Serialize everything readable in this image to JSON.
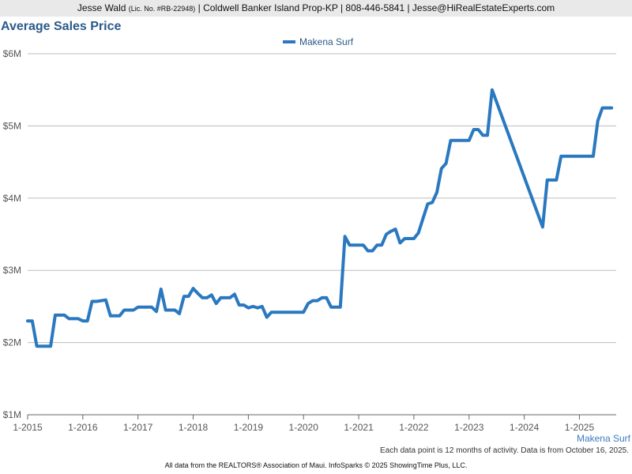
{
  "header": {
    "agent_name": "Jesse Wald",
    "license": "(Lic. No. #RB-22948)",
    "details": "| Coldwell Banker Island Prop-KP | 808-446-5841 | Jesse@HiRealEstateExperts.com"
  },
  "chart_data": {
    "type": "line",
    "title": "Average Sales Price",
    "legend_position": "top-center",
    "grid": true,
    "y_ticks": [
      "$6M",
      "$5M",
      "$4M",
      "$3M",
      "$2M",
      "$1M"
    ],
    "y_tick_values": [
      6,
      5,
      4,
      3,
      2,
      1
    ],
    "ylim": [
      1,
      6
    ],
    "y_unit": "millions USD",
    "x_ticks": [
      "1-2015",
      "1-2016",
      "1-2017",
      "1-2018",
      "1-2019",
      "1-2020",
      "1-2021",
      "1-2022",
      "1-2023",
      "1-2024",
      "1-2025"
    ],
    "x_tick_values": [
      "2015-01",
      "2016-01",
      "2017-01",
      "2018-01",
      "2019-01",
      "2020-01",
      "2021-01",
      "2022-01",
      "2023-01",
      "2024-01",
      "2025-01"
    ],
    "xlim": [
      "2015-01",
      "2025-09"
    ],
    "series": [
      {
        "name": "Makena Surf",
        "color": "#2a78bf",
        "points": [
          [
            "2015-01",
            2.3
          ],
          [
            "2015-02",
            2.3
          ],
          [
            "2015-03",
            1.95
          ],
          [
            "2015-04",
            1.95
          ],
          [
            "2015-05",
            1.95
          ],
          [
            "2015-06",
            1.95
          ],
          [
            "2015-07",
            2.38
          ],
          [
            "2015-08",
            2.38
          ],
          [
            "2015-09",
            2.38
          ],
          [
            "2015-10",
            2.33
          ],
          [
            "2015-11",
            2.33
          ],
          [
            "2015-12",
            2.33
          ],
          [
            "2016-01",
            2.3
          ],
          [
            "2016-02",
            2.3
          ],
          [
            "2016-03",
            2.57
          ],
          [
            "2016-04",
            2.57
          ],
          [
            "2016-05",
            2.58
          ],
          [
            "2016-06",
            2.59
          ],
          [
            "2016-07",
            2.37
          ],
          [
            "2016-08",
            2.37
          ],
          [
            "2016-09",
            2.37
          ],
          [
            "2016-10",
            2.45
          ],
          [
            "2016-11",
            2.45
          ],
          [
            "2016-12",
            2.45
          ],
          [
            "2017-01",
            2.49
          ],
          [
            "2017-02",
            2.49
          ],
          [
            "2017-03",
            2.49
          ],
          [
            "2017-04",
            2.49
          ],
          [
            "2017-05",
            2.43
          ],
          [
            "2017-06",
            2.74
          ],
          [
            "2017-07",
            2.45
          ],
          [
            "2017-08",
            2.45
          ],
          [
            "2017-09",
            2.45
          ],
          [
            "2017-10",
            2.4
          ],
          [
            "2017-11",
            2.64
          ],
          [
            "2017-12",
            2.64
          ],
          [
            "2018-01",
            2.75
          ],
          [
            "2018-02",
            2.68
          ],
          [
            "2018-03",
            2.62
          ],
          [
            "2018-04",
            2.62
          ],
          [
            "2018-05",
            2.66
          ],
          [
            "2018-06",
            2.54
          ],
          [
            "2018-07",
            2.62
          ],
          [
            "2018-08",
            2.62
          ],
          [
            "2018-09",
            2.62
          ],
          [
            "2018-10",
            2.67
          ],
          [
            "2018-11",
            2.52
          ],
          [
            "2018-12",
            2.52
          ],
          [
            "2019-01",
            2.48
          ],
          [
            "2019-02",
            2.5
          ],
          [
            "2019-03",
            2.48
          ],
          [
            "2019-04",
            2.5
          ],
          [
            "2019-05",
            2.35
          ],
          [
            "2019-06",
            2.42
          ],
          [
            "2019-07",
            2.42
          ],
          [
            "2019-08",
            2.42
          ],
          [
            "2019-09",
            2.42
          ],
          [
            "2019-10",
            2.42
          ],
          [
            "2019-11",
            2.42
          ],
          [
            "2019-12",
            2.42
          ],
          [
            "2020-01",
            2.42
          ],
          [
            "2020-02",
            2.54
          ],
          [
            "2020-03",
            2.58
          ],
          [
            "2020-04",
            2.58
          ],
          [
            "2020-05",
            2.62
          ],
          [
            "2020-06",
            2.62
          ],
          [
            "2020-07",
            2.49
          ],
          [
            "2020-08",
            2.49
          ],
          [
            "2020-09",
            2.49
          ],
          [
            "2020-10",
            3.47
          ],
          [
            "2020-11",
            3.35
          ],
          [
            "2020-12",
            3.35
          ],
          [
            "2021-01",
            3.35
          ],
          [
            "2021-02",
            3.35
          ],
          [
            "2021-03",
            3.27
          ],
          [
            "2021-04",
            3.27
          ],
          [
            "2021-05",
            3.35
          ],
          [
            "2021-06",
            3.35
          ],
          [
            "2021-07",
            3.5
          ],
          [
            "2021-08",
            3.54
          ],
          [
            "2021-09",
            3.57
          ],
          [
            "2021-10",
            3.38
          ],
          [
            "2021-11",
            3.44
          ],
          [
            "2021-12",
            3.44
          ],
          [
            "2022-01",
            3.44
          ],
          [
            "2022-02",
            3.52
          ],
          [
            "2022-03",
            3.72
          ],
          [
            "2022-04",
            3.92
          ],
          [
            "2022-05",
            3.94
          ],
          [
            "2022-06",
            4.08
          ],
          [
            "2022-07",
            4.41
          ],
          [
            "2022-08",
            4.48
          ],
          [
            "2022-09",
            4.8
          ],
          [
            "2022-10",
            4.8
          ],
          [
            "2022-11",
            4.8
          ],
          [
            "2022-12",
            4.8
          ],
          [
            "2023-01",
            4.8
          ],
          [
            "2023-02",
            4.95
          ],
          [
            "2023-03",
            4.95
          ],
          [
            "2023-04",
            4.87
          ],
          [
            "2023-05",
            4.87
          ],
          [
            "2023-06",
            5.5
          ],
          [
            "2024-05",
            3.6
          ],
          [
            "2024-06",
            4.25
          ],
          [
            "2024-07",
            4.25
          ],
          [
            "2024-08",
            4.25
          ],
          [
            "2024-09",
            4.58
          ],
          [
            "2024-10",
            4.58
          ],
          [
            "2024-11",
            4.58
          ],
          [
            "2024-12",
            4.58
          ],
          [
            "2025-01",
            4.58
          ],
          [
            "2025-02",
            4.58
          ],
          [
            "2025-03",
            4.58
          ],
          [
            "2025-04",
            4.58
          ],
          [
            "2025-05",
            5.07
          ],
          [
            "2025-06",
            5.25
          ],
          [
            "2025-07",
            5.25
          ],
          [
            "2025-08",
            5.25
          ]
        ]
      }
    ]
  },
  "footer": {
    "series_tag": "Makena Surf",
    "note": "Each data point is 12 months of activity. Data is from October 16, 2025.",
    "copyright": "All data from the REALTORS® Association of Maui. InfoSparks © 2025 ShowingTime Plus, LLC."
  }
}
